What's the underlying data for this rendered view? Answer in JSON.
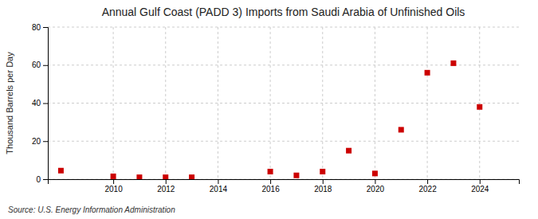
{
  "chart_data": {
    "type": "scatter",
    "title": "Annual Gulf Coast (PADD 3) Imports from Saudi Arabia of Unfinished Oils",
    "y_label": "Thousand Barrels per Day",
    "annotations": [
      "Source: U.S. Energy Information Administration"
    ],
    "x": [
      2008,
      2010,
      2011,
      2012,
      2013,
      2016,
      2017,
      2018,
      2019,
      2020,
      2021,
      2022,
      2023,
      2024
    ],
    "values": [
      4.5,
      1.5,
      1.0,
      1.0,
      1.0,
      4.0,
      2.0,
      4.0,
      15.0,
      3.0,
      26.0,
      56.0,
      61.0,
      38.0
    ],
    "color": "#cc0000",
    "marker": "square",
    "xlim": [
      2007.5,
      2025.5
    ],
    "ylim": [
      0,
      80
    ],
    "xticks": [
      2010,
      2012,
      2014,
      2016,
      2018,
      2020,
      2022,
      2024
    ],
    "yticks": [
      0,
      20,
      40,
      60,
      80
    ],
    "grid": true
  }
}
